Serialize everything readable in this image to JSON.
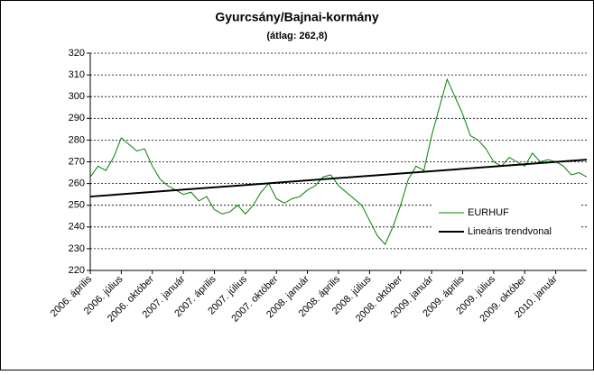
{
  "chart_data": {
    "type": "line",
    "title": "Gyurcsány/Bajnai-kormány",
    "subtitle": "(átlag: 262,8)",
    "categories": [
      "2006. április",
      null,
      null,
      null,
      "2006. július",
      null,
      null,
      null,
      "2006. október",
      null,
      null,
      null,
      "2007. január",
      null,
      null,
      null,
      "2007. április",
      null,
      null,
      null,
      "2007. július",
      null,
      null,
      null,
      "2007. október",
      null,
      null,
      null,
      "2008. január",
      null,
      null,
      null,
      "2008. április",
      null,
      null,
      null,
      "2008. július",
      null,
      null,
      null,
      "2008. október",
      null,
      null,
      null,
      "2009. január",
      null,
      null,
      null,
      "2009. április",
      null,
      null,
      null,
      "2009. július",
      null,
      null,
      null,
      "2009. október",
      null,
      null,
      null,
      "2010. január",
      null,
      null,
      null,
      null
    ],
    "series": [
      {
        "name": "EURHUF",
        "color": "#008000",
        "values": [
          263,
          268,
          266,
          272,
          281,
          278,
          275,
          276,
          268,
          262,
          259,
          257,
          255,
          256,
          252,
          254,
          248,
          246,
          247,
          250,
          246,
          250,
          256,
          260,
          253,
          251,
          253,
          254,
          257,
          259,
          263,
          264,
          259,
          256,
          253,
          250,
          243,
          236,
          232,
          240,
          250,
          262,
          268,
          266,
          282,
          295,
          308,
          300,
          292,
          282,
          280,
          276,
          270,
          268,
          272,
          270,
          268,
          274,
          270,
          271,
          270,
          268,
          264,
          265,
          263
        ]
      }
    ],
    "trendline": {
      "name": "Lineáris trendvonal",
      "color": "#000000",
      "start": 254,
      "end": 271
    },
    "ylim": [
      220,
      320
    ],
    "yticks": [
      220,
      230,
      240,
      250,
      260,
      270,
      280,
      290,
      300,
      310,
      320
    ],
    "grid": true
  }
}
